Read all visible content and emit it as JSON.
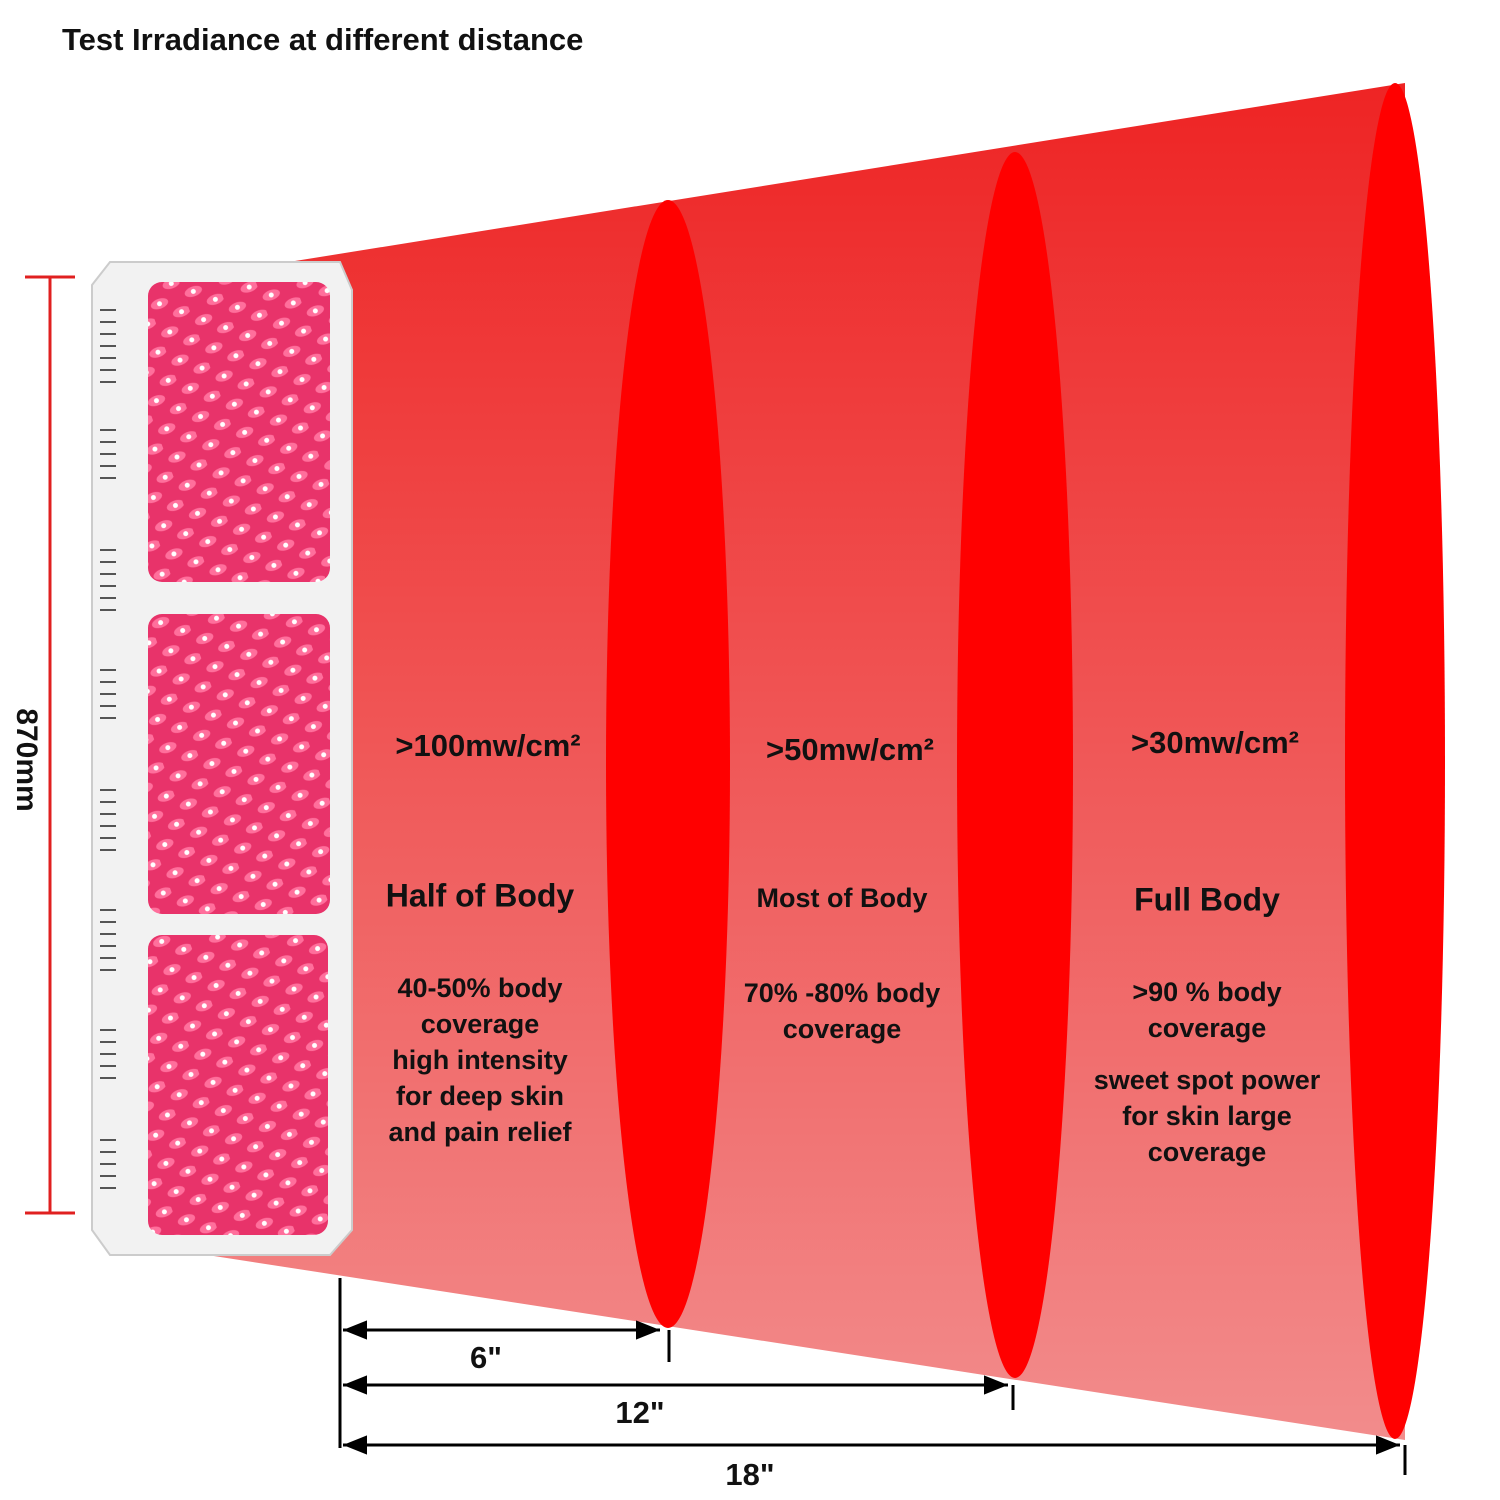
{
  "title": "Test Irradiance at different distance",
  "height_label": "870mm",
  "zones": [
    {
      "irradiance": ">100mw/cm²",
      "coverage": "Half of Body",
      "description": [
        [
          "40-50% body",
          "coverage",
          "high intensity",
          "for deep skin",
          "and pain relief"
        ]
      ]
    },
    {
      "irradiance": ">50mw/cm²",
      "coverage": "Most of Body",
      "description": [
        [
          "70% -80% body",
          "coverage"
        ]
      ]
    },
    {
      "irradiance": ">30mw/cm²",
      "coverage": "Full Body",
      "description": [
        [
          ">90 % body",
          "coverage"
        ],
        [
          "sweet spot power",
          "for skin large",
          "coverage"
        ]
      ]
    }
  ],
  "distances": [
    "6\"",
    "12\"",
    "18\""
  ]
}
